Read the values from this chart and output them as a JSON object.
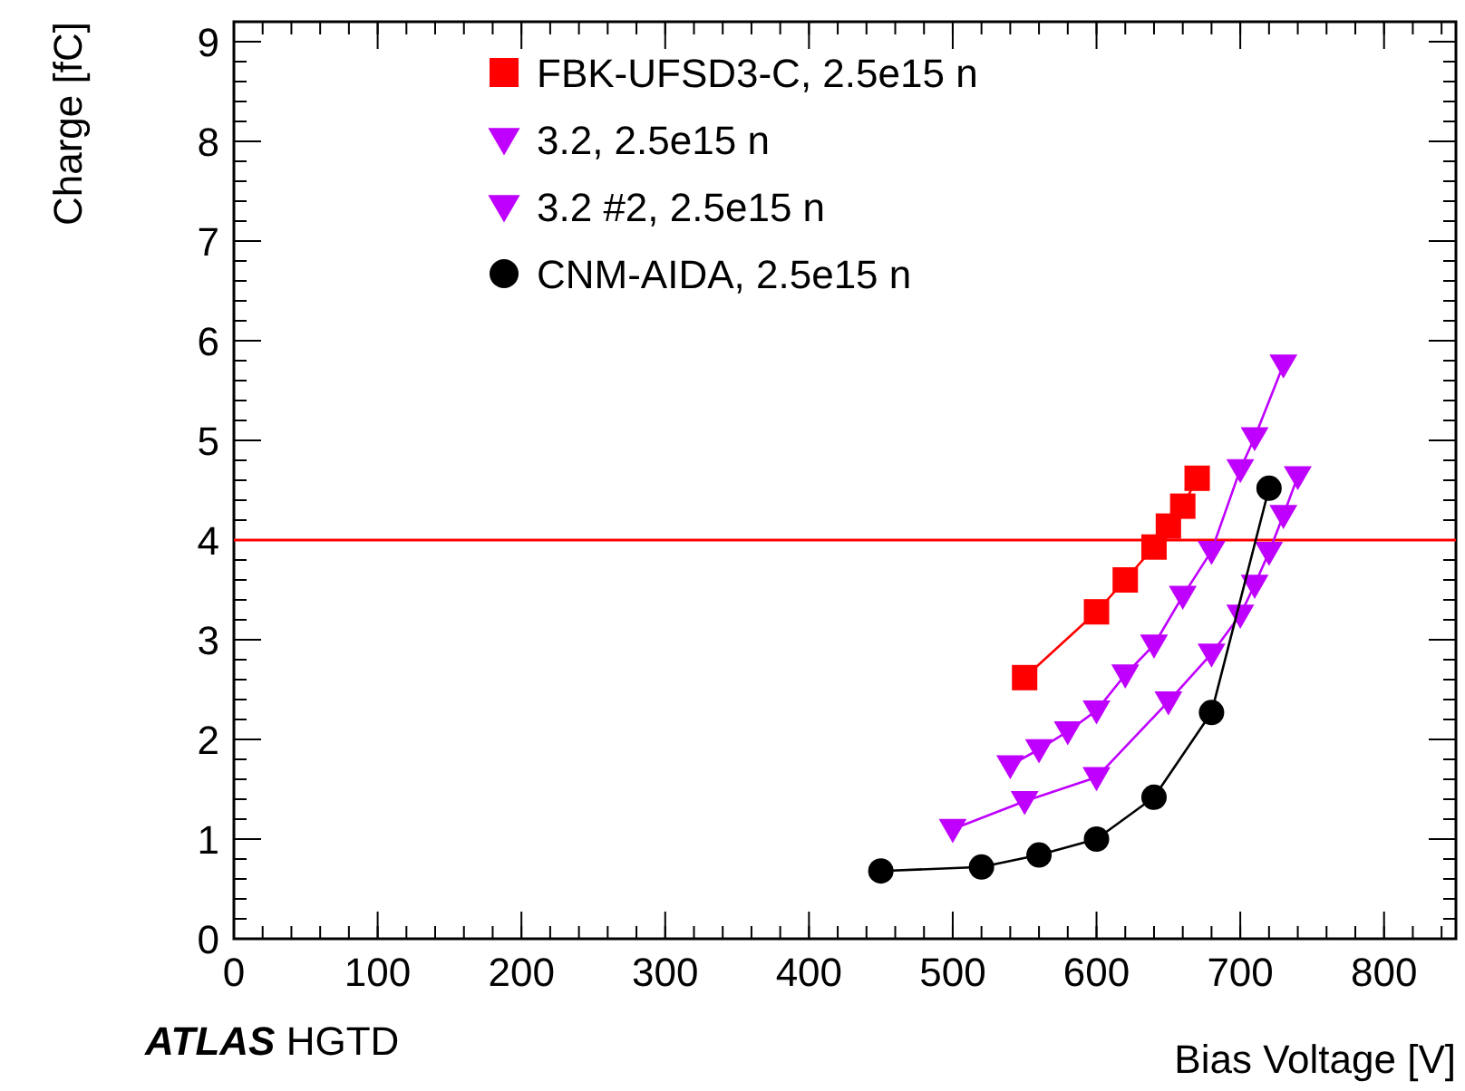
{
  "chart_data": {
    "type": "line",
    "xlabel": "Bias Voltage [V]",
    "ylabel": "Charge [fC]",
    "xlim": [
      0,
      850
    ],
    "xticks": [
      0,
      100,
      200,
      300,
      400,
      500,
      600,
      700,
      800
    ],
    "ylim": [
      0,
      9.2
    ],
    "yticks": [
      0,
      1,
      2,
      3,
      4,
      5,
      6,
      7,
      8,
      9
    ],
    "grid": false,
    "legend": "top left",
    "line_style": "solid",
    "ref_lines": [
      {
        "axis": "y",
        "value": 4,
        "color": "#ff0000"
      }
    ],
    "annotations": [
      "ATLAS HGTD"
    ],
    "series": [
      {
        "name": "FBK-UFSD3-C, 2.5e15 n",
        "color": "#ff0000",
        "marker": "square",
        "x": [
          550,
          600,
          620,
          640,
          650,
          660,
          670
        ],
        "values": [
          2.62,
          3.28,
          3.6,
          3.93,
          4.14,
          4.34,
          4.62
        ]
      },
      {
        "name": "3.2, 2.5e15 n",
        "color": "#bf00ff",
        "marker": "triangle",
        "x": [
          540,
          560,
          580,
          600,
          620,
          640,
          660,
          680,
          700,
          710,
          730
        ],
        "values": [
          1.74,
          1.9,
          2.08,
          2.29,
          2.65,
          2.95,
          3.44,
          3.89,
          4.71,
          5.03,
          5.76
        ]
      },
      {
        "name": "3.2 #2, 2.5e15 n",
        "color": "#bf00ff",
        "marker": "triangle",
        "x": [
          500,
          550,
          600,
          650,
          680,
          700,
          710,
          720,
          730,
          740
        ],
        "values": [
          1.1,
          1.38,
          1.62,
          2.38,
          2.86,
          3.25,
          3.55,
          3.88,
          4.25,
          4.64
        ]
      },
      {
        "name": "CNM-AIDA, 2.5e15 n",
        "color": "#000000",
        "marker": "circle",
        "x": [
          450,
          520,
          560,
          600,
          640,
          680,
          720
        ],
        "values": [
          0.68,
          0.72,
          0.84,
          1.0,
          1.42,
          2.27,
          4.52
        ]
      }
    ]
  }
}
